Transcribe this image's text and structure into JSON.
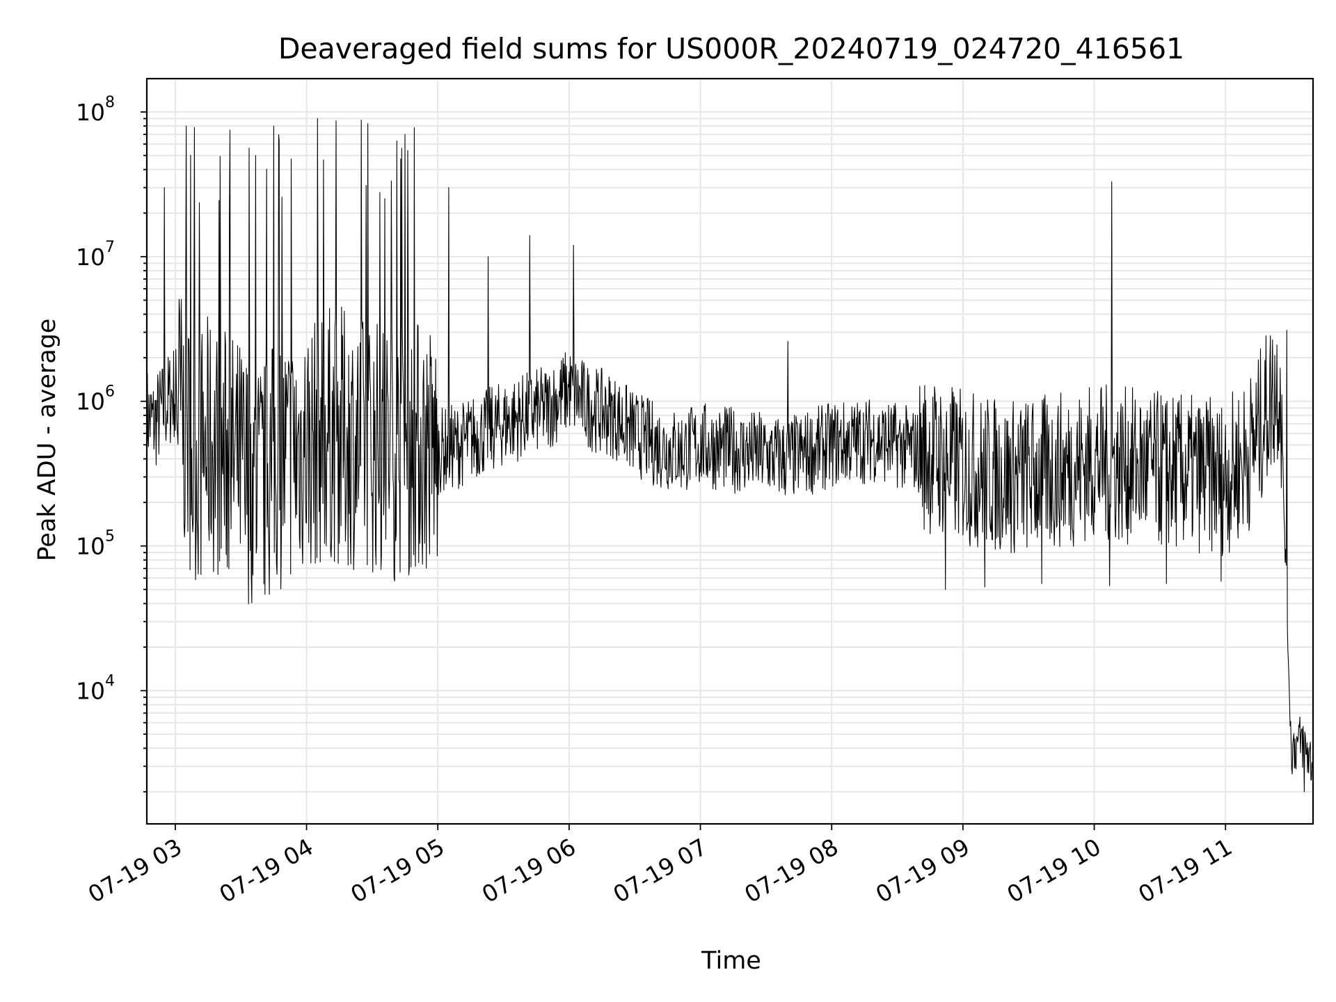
{
  "chart_data": {
    "type": "line",
    "title": "Deaveraged field sums for US000R_20240719_024720_416561",
    "xlabel": "Time",
    "ylabel": "Peak ADU - average",
    "xlim": [
      "07-19 02:47",
      "07-19 11:40"
    ],
    "ylim": [
      1200,
      170000000
    ],
    "yscale": "log",
    "grid": true,
    "x_tick_labels": [
      "07-19 03",
      "07-19 04",
      "07-19 05",
      "07-19 06",
      "07-19 07",
      "07-19 08",
      "07-19 09",
      "07-19 10",
      "07-19 11"
    ],
    "y_ticks": [
      {
        "base": "10",
        "exp": "4",
        "value": 10000
      },
      {
        "base": "10",
        "exp": "5",
        "value": 100000
      },
      {
        "base": "10",
        "exp": "6",
        "value": 1000000
      },
      {
        "base": "10",
        "exp": "7",
        "value": 10000000
      },
      {
        "base": "10",
        "exp": "8",
        "value": 100000000
      }
    ],
    "series": [
      {
        "color": "#000000",
        "x": [
          "07-19 02:47",
          "07-19 02:50",
          "07-19 02:55",
          "07-19 03:00",
          "07-19 03:05",
          "07-19 03:10",
          "07-19 03:15",
          "07-19 03:20",
          "07-19 03:25",
          "07-19 03:30",
          "07-19 03:35",
          "07-19 03:40",
          "07-19 03:45",
          "07-19 03:50",
          "07-19 03:55",
          "07-19 04:00",
          "07-19 04:10",
          "07-19 04:20",
          "07-19 04:30",
          "07-19 04:40",
          "07-19 04:50",
          "07-19 05:00",
          "07-19 05:10",
          "07-19 05:20",
          "07-19 05:30",
          "07-19 05:40",
          "07-19 05:50",
          "07-19 06:00",
          "07-19 06:10",
          "07-19 06:20",
          "07-19 06:30",
          "07-19 06:40",
          "07-19 06:50",
          "07-19 07:00",
          "07-19 07:20",
          "07-19 07:40",
          "07-19 08:00",
          "07-19 08:20",
          "07-19 08:40",
          "07-19 09:00",
          "07-19 09:20",
          "07-19 09:40",
          "07-19 10:00",
          "07-19 10:20",
          "07-19 10:40",
          "07-19 11:00",
          "07-19 11:10",
          "07-19 11:15",
          "07-19 11:20",
          "07-19 11:25",
          "07-19 11:30",
          "07-19 11:35",
          "07-19 11:40"
        ],
        "values": [
          800000,
          700000,
          900000,
          1200000,
          600000,
          400000,
          500000,
          450000,
          400000,
          350000,
          300000,
          250000,
          350000,
          400000,
          450000,
          500000,
          600000,
          550000,
          500000,
          450000,
          500000,
          450000,
          500000,
          600000,
          700000,
          800000,
          900000,
          1200000,
          900000,
          800000,
          600000,
          500000,
          450000,
          500000,
          450000,
          400000,
          500000,
          550000,
          450000,
          350000,
          300000,
          320000,
          380000,
          350000,
          320000,
          300000,
          420000,
          600000,
          1000000,
          1400000,
          4000,
          4500,
          3000
        ],
        "spikes": [
          {
            "x": "07-19 02:55",
            "y": 30000000
          },
          {
            "x": "07-19 03:05",
            "y": 80000000
          },
          {
            "x": "07-19 03:25",
            "y": 75000000
          },
          {
            "x": "07-19 03:45",
            "y": 80000000
          },
          {
            "x": "07-19 04:05",
            "y": 90000000
          },
          {
            "x": "07-19 04:25",
            "y": 88000000
          },
          {
            "x": "07-19 04:45",
            "y": 70000000
          },
          {
            "x": "07-19 05:05",
            "y": 30000000
          },
          {
            "x": "07-19 05:23",
            "y": 10000000
          },
          {
            "x": "07-19 05:42",
            "y": 14000000
          },
          {
            "x": "07-19 06:02",
            "y": 12000000
          },
          {
            "x": "07-19 07:40",
            "y": 2600000
          },
          {
            "x": "07-19 10:08",
            "y": 33000000
          },
          {
            "x": "07-19 11:28",
            "y": 3100000
          }
        ],
        "dips": [
          {
            "x": "07-19 03:08",
            "y": 125000
          },
          {
            "x": "07-19 03:32",
            "y": 120000
          },
          {
            "x": "07-19 03:42",
            "y": 135000
          },
          {
            "x": "07-19 04:22",
            "y": 170000
          },
          {
            "x": "07-19 08:52",
            "y": 50000
          },
          {
            "x": "07-19 09:10",
            "y": 52000
          },
          {
            "x": "07-19 09:36",
            "y": 55000
          },
          {
            "x": "07-19 10:07",
            "y": 53000
          },
          {
            "x": "07-19 10:33",
            "y": 55000
          },
          {
            "x": "07-19 10:58",
            "y": 57000
          },
          {
            "x": "07-19 11:36",
            "y": 2000
          }
        ]
      }
    ]
  }
}
